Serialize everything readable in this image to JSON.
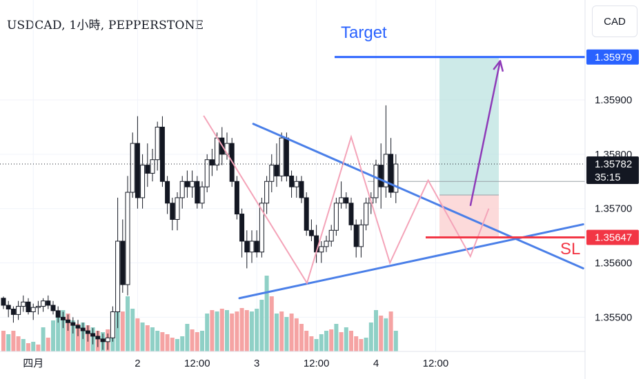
{
  "chart_title": "USDCAD, 1小時, PEPPERSTONE",
  "currency_button": "CAD",
  "colors": {
    "up": "#ffffff",
    "down": "#131722",
    "trendline": "#4a7fe8",
    "zigzag": "#f4a3b8",
    "target_line": "#2962ff",
    "stop_line": "#f23645",
    "path_arrow": "#8e3ab8",
    "profit_zone": "#b2dfdb",
    "loss_zone": "#fbd4d4",
    "volume_up": "#8fd0c6",
    "volume_down": "#f5a3a3",
    "current_price_badge": "#131722"
  },
  "chart_data": {
    "type": "candlestick",
    "symbol": "USDCAD",
    "interval": "1小時",
    "source": "PEPPERSTONE",
    "y_ticks": [
      "1.35900",
      "1.35800",
      "1.35700",
      "1.35600",
      "1.35500"
    ],
    "y_tick_values": [
      1.359,
      1.358,
      1.357,
      1.356,
      1.355
    ],
    "ylim": [
      1.35437,
      1.36084
    ],
    "x_ticks": [
      {
        "label": "四月",
        "index": 6
      },
      {
        "label": "2",
        "index": 27
      },
      {
        "label": "12:00",
        "index": 39
      },
      {
        "label": "3",
        "index": 51
      },
      {
        "label": "12:00",
        "index": 63
      },
      {
        "label": "4",
        "index": 75
      },
      {
        "label": "12:00",
        "index": 87
      }
    ],
    "candles": [
      [
        1.35535,
        1.35538,
        1.35515,
        1.35522
      ],
      [
        1.35522,
        1.3553,
        1.355,
        1.35515
      ],
      [
        1.35515,
        1.3552,
        1.3549,
        1.35505
      ],
      [
        1.35505,
        1.3553,
        1.35495,
        1.3552
      ],
      [
        1.3552,
        1.3554,
        1.3551,
        1.35528
      ],
      [
        1.35528,
        1.35535,
        1.35505,
        1.3551
      ],
      [
        1.3551,
        1.35525,
        1.35495,
        1.35518
      ],
      [
        1.35518,
        1.3553,
        1.35505,
        1.3552
      ],
      [
        1.3552,
        1.35535,
        1.3551,
        1.3553
      ],
      [
        1.3553,
        1.3554,
        1.35515,
        1.35522
      ],
      [
        1.35522,
        1.3553,
        1.35505,
        1.35512
      ],
      [
        1.35512,
        1.3552,
        1.3549,
        1.355
      ],
      [
        1.355,
        1.3551,
        1.3548,
        1.35495
      ],
      [
        1.35495,
        1.35505,
        1.35475,
        1.3549
      ],
      [
        1.3549,
        1.355,
        1.3547,
        1.35485
      ],
      [
        1.35485,
        1.35495,
        1.35465,
        1.3548
      ],
      [
        1.3548,
        1.3549,
        1.3546,
        1.35475
      ],
      [
        1.35475,
        1.35485,
        1.35455,
        1.3547
      ],
      [
        1.3547,
        1.3548,
        1.3545,
        1.35465
      ],
      [
        1.35465,
        1.35475,
        1.35445,
        1.3546
      ],
      [
        1.3546,
        1.3547,
        1.3544,
        1.35455
      ],
      [
        1.35455,
        1.3547,
        1.3544,
        1.35462
      ],
      [
        1.35462,
        1.3552,
        1.35455,
        1.3551
      ],
      [
        1.3551,
        1.3572,
        1.3548,
        1.3564
      ],
      [
        1.3564,
        1.3568,
        1.35545,
        1.3556
      ],
      [
        1.3556,
        1.3576,
        1.3554,
        1.3573
      ],
      [
        1.3573,
        1.3584,
        1.3572,
        1.3582
      ],
      [
        1.3582,
        1.3587,
        1.357,
        1.3572
      ],
      [
        1.3572,
        1.358,
        1.357,
        1.3578
      ],
      [
        1.3578,
        1.3582,
        1.3574,
        1.35765
      ],
      [
        1.35765,
        1.3581,
        1.3575,
        1.3579
      ],
      [
        1.3579,
        1.3586,
        1.3577,
        1.3585
      ],
      [
        1.3585,
        1.3587,
        1.3574,
        1.3575
      ],
      [
        1.3575,
        1.3576,
        1.3569,
        1.3571
      ],
      [
        1.3571,
        1.3572,
        1.3566,
        1.3568
      ],
      [
        1.3568,
        1.3573,
        1.3566,
        1.3572
      ],
      [
        1.3572,
        1.3576,
        1.357,
        1.3575
      ],
      [
        1.3575,
        1.3577,
        1.3572,
        1.3574
      ],
      [
        1.3574,
        1.3577,
        1.3572,
        1.3575
      ],
      [
        1.3575,
        1.3576,
        1.357,
        1.3571
      ],
      [
        1.3571,
        1.3575,
        1.357,
        1.3574
      ],
      [
        1.3574,
        1.358,
        1.3573,
        1.3579
      ],
      [
        1.3579,
        1.3581,
        1.3576,
        1.3578
      ],
      [
        1.3578,
        1.3584,
        1.3577,
        1.3583
      ],
      [
        1.3583,
        1.3585,
        1.3578,
        1.358
      ],
      [
        1.358,
        1.3584,
        1.3579,
        1.3582
      ],
      [
        1.3582,
        1.3583,
        1.3574,
        1.3575
      ],
      [
        1.3575,
        1.3576,
        1.3568,
        1.3569
      ],
      [
        1.3569,
        1.357,
        1.3561,
        1.3564
      ],
      [
        1.3564,
        1.3566,
        1.3559,
        1.3562
      ],
      [
        1.3562,
        1.3566,
        1.356,
        1.3564
      ],
      [
        1.3564,
        1.3566,
        1.3561,
        1.3562
      ],
      [
        1.3562,
        1.3572,
        1.3561,
        1.3571
      ],
      [
        1.3571,
        1.3576,
        1.3569,
        1.3575
      ],
      [
        1.3575,
        1.358,
        1.3573,
        1.3578
      ],
      [
        1.3578,
        1.3582,
        1.3574,
        1.3576
      ],
      [
        1.3576,
        1.3584,
        1.3575,
        1.3583
      ],
      [
        1.3583,
        1.3584,
        1.3575,
        1.3576
      ],
      [
        1.3576,
        1.3577,
        1.3572,
        1.3574
      ],
      [
        1.3574,
        1.3576,
        1.3572,
        1.3575
      ],
      [
        1.3575,
        1.3576,
        1.3571,
        1.3572
      ],
      [
        1.3572,
        1.3573,
        1.3565,
        1.3566
      ],
      [
        1.3566,
        1.3568,
        1.3564,
        1.3565
      ],
      [
        1.3565,
        1.3567,
        1.356,
        1.3562
      ],
      [
        1.3562,
        1.3564,
        1.356,
        1.3563
      ],
      [
        1.3563,
        1.3565,
        1.3562,
        1.3564
      ],
      [
        1.3564,
        1.3567,
        1.3563,
        1.3566
      ],
      [
        1.3566,
        1.3572,
        1.3565,
        1.3571
      ],
      [
        1.3571,
        1.3575,
        1.357,
        1.3572
      ],
      [
        1.3572,
        1.3573,
        1.357,
        1.3571
      ],
      [
        1.3571,
        1.3572,
        1.3566,
        1.3567
      ],
      [
        1.3567,
        1.3568,
        1.3561,
        1.3563
      ],
      [
        1.3563,
        1.3568,
        1.3561,
        1.3567
      ],
      [
        1.3567,
        1.3572,
        1.3566,
        1.3571
      ],
      [
        1.3571,
        1.3573,
        1.3569,
        1.3572
      ],
      [
        1.3572,
        1.3579,
        1.3571,
        1.3578
      ],
      [
        1.3578,
        1.3582,
        1.357,
        1.3574
      ],
      [
        1.3574,
        1.3589,
        1.3572,
        1.358
      ],
      [
        1.358,
        1.3583,
        1.3572,
        1.3573
      ],
      [
        1.3573,
        1.358,
        1.3571,
        1.35782
      ]
    ],
    "volume": [
      {
        "v": 30,
        "up": false
      },
      {
        "v": 25,
        "up": true
      },
      {
        "v": 30,
        "up": false
      },
      {
        "v": 22,
        "up": false
      },
      {
        "v": 18,
        "up": true
      },
      {
        "v": 12,
        "up": false
      },
      {
        "v": 14,
        "up": true
      },
      {
        "v": 10,
        "up": false
      },
      {
        "v": 35,
        "up": true
      },
      {
        "v": 20,
        "up": false
      },
      {
        "v": 45,
        "up": true
      },
      {
        "v": 50,
        "up": true
      },
      {
        "v": 60,
        "up": true
      },
      {
        "v": 55,
        "up": false
      },
      {
        "v": 45,
        "up": true
      },
      {
        "v": 40,
        "up": false
      },
      {
        "v": 42,
        "up": true
      },
      {
        "v": 38,
        "up": false
      },
      {
        "v": 35,
        "up": true
      },
      {
        "v": 30,
        "up": false
      },
      {
        "v": 28,
        "up": true
      },
      {
        "v": 32,
        "up": false
      },
      {
        "v": 45,
        "up": true
      },
      {
        "v": 100,
        "up": true
      },
      {
        "v": 58,
        "up": false
      },
      {
        "v": 80,
        "up": true
      },
      {
        "v": 62,
        "up": true
      },
      {
        "v": 48,
        "up": false
      },
      {
        "v": 42,
        "up": true
      },
      {
        "v": 38,
        "up": false
      },
      {
        "v": 35,
        "up": true
      },
      {
        "v": 30,
        "up": true
      },
      {
        "v": 28,
        "up": false
      },
      {
        "v": 25,
        "up": false
      },
      {
        "v": 20,
        "up": false
      },
      {
        "v": 18,
        "up": true
      },
      {
        "v": 22,
        "up": true
      },
      {
        "v": 40,
        "up": true
      },
      {
        "v": 32,
        "up": false
      },
      {
        "v": 28,
        "up": false
      },
      {
        "v": 30,
        "up": true
      },
      {
        "v": 55,
        "up": true
      },
      {
        "v": 60,
        "up": false
      },
      {
        "v": 58,
        "up": true
      },
      {
        "v": 62,
        "up": false
      },
      {
        "v": 60,
        "up": true
      },
      {
        "v": 55,
        "up": false
      },
      {
        "v": 58,
        "up": false
      },
      {
        "v": 63,
        "up": false
      },
      {
        "v": 60,
        "up": false
      },
      {
        "v": 58,
        "up": true
      },
      {
        "v": 62,
        "up": true
      },
      {
        "v": 75,
        "up": true
      },
      {
        "v": 110,
        "up": true
      },
      {
        "v": 80,
        "up": false
      },
      {
        "v": 55,
        "up": true
      },
      {
        "v": 58,
        "up": false
      },
      {
        "v": 50,
        "up": true
      },
      {
        "v": 55,
        "up": false
      },
      {
        "v": 48,
        "up": false
      },
      {
        "v": 40,
        "up": false
      },
      {
        "v": 30,
        "up": false
      },
      {
        "v": 22,
        "up": false
      },
      {
        "v": 18,
        "up": true
      },
      {
        "v": 25,
        "up": true
      },
      {
        "v": 30,
        "up": true
      },
      {
        "v": 32,
        "up": false
      },
      {
        "v": 40,
        "up": true
      },
      {
        "v": 28,
        "up": false
      },
      {
        "v": 35,
        "up": true
      },
      {
        "v": 30,
        "up": false
      },
      {
        "v": 22,
        "up": false
      },
      {
        "v": 18,
        "up": false
      },
      {
        "v": 20,
        "up": true
      },
      {
        "v": 42,
        "up": true
      },
      {
        "v": 60,
        "up": true
      },
      {
        "v": 52,
        "up": false
      },
      {
        "v": 48,
        "up": true
      },
      {
        "v": 58,
        "up": false
      },
      {
        "v": 30,
        "up": true
      }
    ],
    "volume_max": 110,
    "target_label": "Target",
    "target_price": "1.35979",
    "target_value": 1.35979,
    "stop_label": "SL",
    "stop_price": "1.35647",
    "stop_value": 1.35647,
    "current_price": "1.35782",
    "current_value": 1.35782,
    "countdown": "35:15",
    "position_entry_value": 1.35725,
    "trendlines": [
      {
        "name": "upper-trendline",
        "from": [
          50.3,
          1.35856
        ],
        "to": [
          116.7,
          1.3559
        ]
      },
      {
        "name": "lower-trendline",
        "from": [
          47.5,
          1.35535
        ],
        "to": [
          116.7,
          1.35671
        ]
      }
    ],
    "zigzag_points": [
      [
        40.3,
        1.35871
      ],
      [
        61.1,
        1.35563
      ],
      [
        70.0,
        1.35832
      ],
      [
        77.8,
        1.356
      ],
      [
        85.5,
        1.35752
      ],
      [
        94.0,
        1.35612
      ],
      [
        97.7,
        1.357
      ]
    ],
    "price_path": [
      [
        94.0,
        1.35705
      ],
      [
        100.0,
        1.35972
      ]
    ]
  }
}
